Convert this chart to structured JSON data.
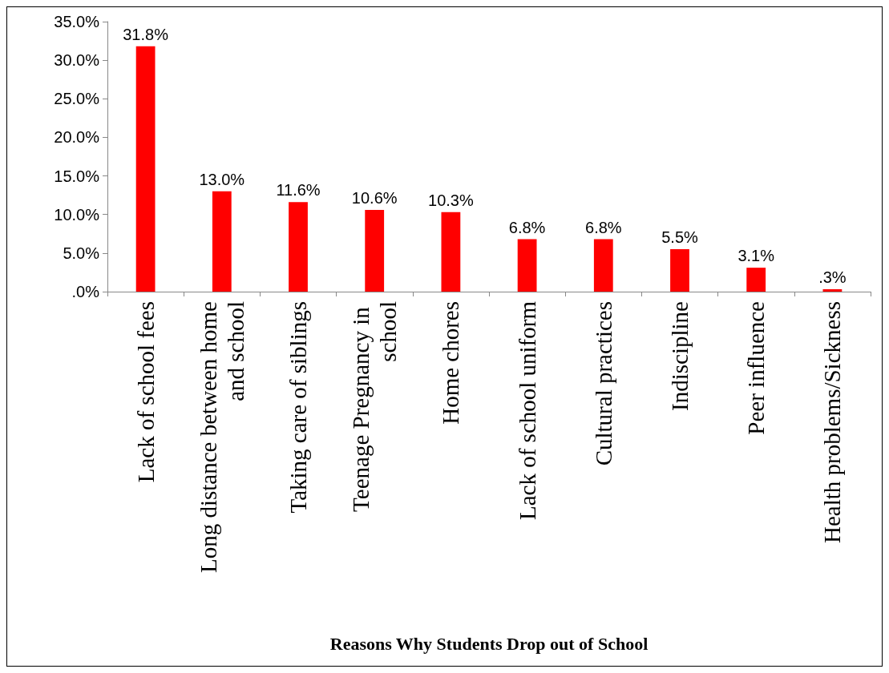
{
  "chart_data": {
    "type": "bar",
    "xlabel": "Reasons Why Students Drop out of School",
    "categories": [
      "Lack of school fees",
      "Long distance between home and school",
      "Taking care of siblings",
      "Teenage Pregnancy in school",
      "Home chores",
      "Lack of school uniform",
      "Cultural practices",
      "Indiscipline",
      "Peer influence",
      "Health problems/Sickness"
    ],
    "values": [
      31.8,
      13.0,
      11.6,
      10.6,
      10.3,
      6.8,
      6.8,
      5.5,
      3.1,
      0.3
    ],
    "value_labels": [
      "31.8%",
      "13.0%",
      "11.6%",
      "10.6%",
      "10.3%",
      "6.8%",
      "6.8%",
      "5.5%",
      "3.1%",
      ".3%"
    ],
    "color": "#ff0000",
    "ylim": [
      0,
      35
    ],
    "yticks": [
      {
        "value": 0,
        "label": ".0%"
      },
      {
        "value": 5,
        "label": "5.0%"
      },
      {
        "value": 10,
        "label": "10.0%"
      },
      {
        "value": 15,
        "label": "15.0%"
      },
      {
        "value": 20,
        "label": "20.0%"
      },
      {
        "value": 25,
        "label": "25.0%"
      },
      {
        "value": 30,
        "label": "30.0%"
      },
      {
        "value": 35,
        "label": "35.0%"
      }
    ],
    "grid": false
  }
}
